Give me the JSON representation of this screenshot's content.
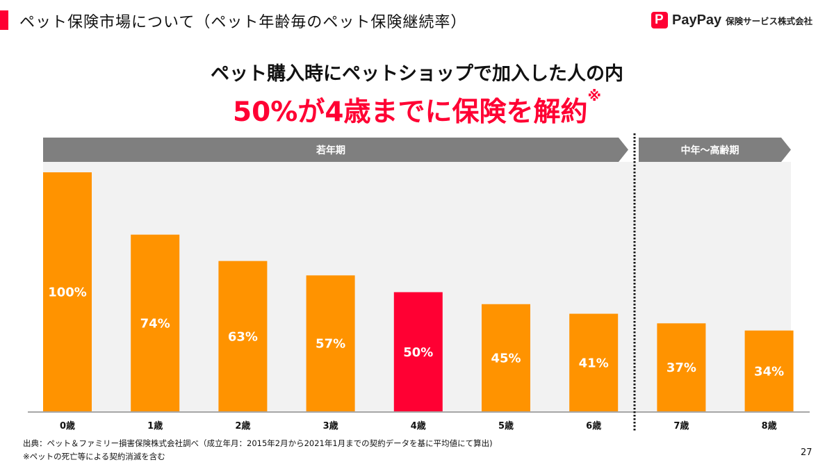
{
  "header": {
    "title": "ペット保険市場について（ペット年齢毎のペット保険継続率）",
    "logo": {
      "brand": "PayPay",
      "mark": "P",
      "company": "保険サービス株式会社"
    }
  },
  "headline": {
    "line1": "ペット購入時にペットショップで加入した人の内",
    "line2": "50%が4歳までに保険を解約",
    "line2_mark": "※"
  },
  "chart_data": {
    "type": "bar",
    "title": "ペット年齢毎のペット保険継続率",
    "categories": [
      "0歳",
      "1歳",
      "2歳",
      "3歳",
      "4歳",
      "5歳",
      "6歳",
      "7歳",
      "8歳"
    ],
    "values": [
      100,
      74,
      63,
      57,
      50,
      45,
      41,
      37,
      34
    ],
    "labels": [
      "100%",
      "74%",
      "63%",
      "57%",
      "50%",
      "45%",
      "41%",
      "37%",
      "34%"
    ],
    "unit": "%",
    "ylim": [
      0,
      100
    ],
    "xlabel": "",
    "ylabel": "",
    "grid": false,
    "highlight_index": 4,
    "colors": {
      "default": "#ff9300",
      "highlight": "#ff0033",
      "panel": "#f2f2f2",
      "band": "#7f7f7f"
    },
    "bands": [
      {
        "label": "若年期",
        "from": 0,
        "to": 6
      },
      {
        "label": "中年〜高齢期",
        "from": 7,
        "to": 8
      }
    ]
  },
  "footer": {
    "source": "出典：ペット＆ファミリー損害保険株式会社調べ（成立年月：2015年2月から2021年1月までの契約データを基に平均値にて算出)",
    "note": "※ペットの死亡等による契約消滅を含む",
    "page": "27"
  }
}
